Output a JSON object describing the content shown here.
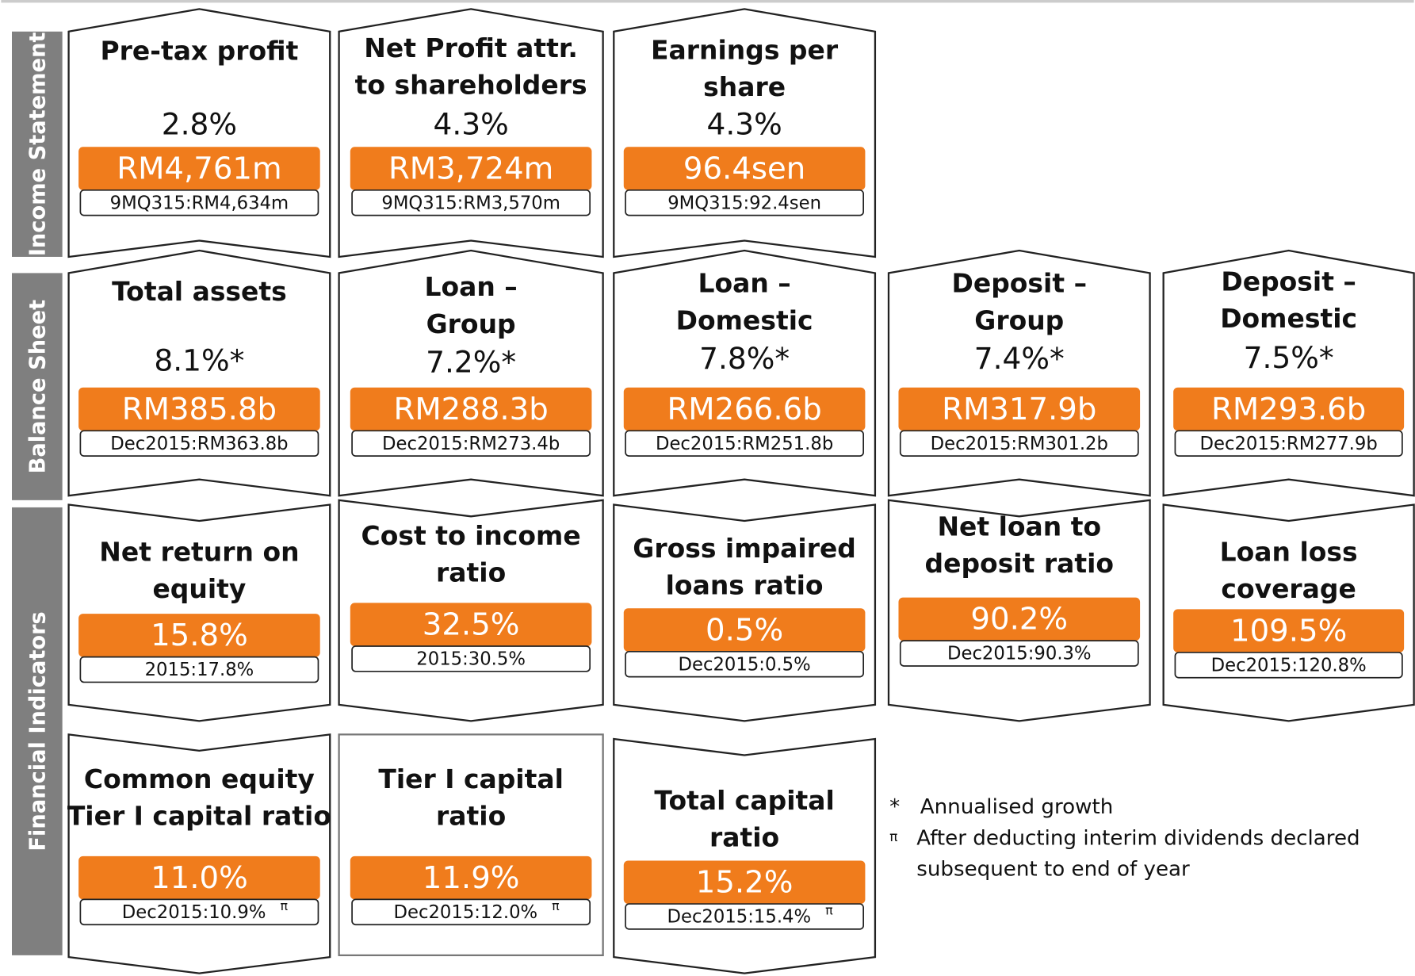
{
  "sections": [
    {
      "label": "Income Statement",
      "cards": [
        {
          "title": [
            "Pre-tax profit"
          ],
          "growth": "2.8%",
          "value": "RM4,761m",
          "compare": "9MQ315:RM4,634m"
        },
        {
          "title": [
            "Net Profit attr.",
            "to shareholders"
          ],
          "growth": "4.3%",
          "value": "RM3,724m",
          "compare": "9MQ315:RM3,570m"
        },
        {
          "title": [
            "Earnings per",
            "share"
          ],
          "growth": "4.3%",
          "value": "96.4sen",
          "compare": "9MQ315:92.4sen"
        }
      ]
    },
    {
      "label": "Balance Sheet",
      "cards": [
        {
          "title": [
            "Total assets"
          ],
          "growth": "8.1%*",
          "value": "RM385.8b",
          "compare": "Dec2015:RM363.8b"
        },
        {
          "title": [
            "Loan –",
            "Group"
          ],
          "growth": "7.2%*",
          "value": "RM288.3b",
          "compare": "Dec2015:RM273.4b"
        },
        {
          "title": [
            "Loan –",
            "Domestic"
          ],
          "growth": "7.8%*",
          "value": "RM266.6b",
          "compare": "Dec2015:RM251.8b"
        },
        {
          "title": [
            "Deposit –",
            "Group"
          ],
          "growth": "7.4%*",
          "value": "RM317.9b",
          "compare": "Dec2015:RM301.2b"
        },
        {
          "title": [
            "Deposit –",
            "Domestic"
          ],
          "growth": "7.5%*",
          "value": "RM293.6b",
          "compare": "Dec2015:RM277.9b"
        }
      ]
    },
    {
      "label": "Financial Indicators",
      "cards": [
        {
          "title": [
            "Net return on",
            "equity"
          ],
          "value": "15.8%",
          "compare": "2015:17.8%"
        },
        {
          "title": [
            "Cost to income",
            "ratio"
          ],
          "value": "32.5%",
          "compare": "2015:30.5%"
        },
        {
          "title": [
            "Gross impaired",
            "loans ratio"
          ],
          "value": "0.5%",
          "compare": "Dec2015:0.5%"
        },
        {
          "title": [
            "Net loan to",
            "deposit ratio"
          ],
          "value": "90.2%",
          "compare": "Dec2015:90.3%"
        },
        {
          "title": [
            "Loan loss",
            "coverage"
          ],
          "value": "109.5%",
          "compare": "Dec2015:120.8%"
        },
        {
          "title": [
            "Common equity",
            "Tier I capital ratio"
          ],
          "value": "11.0%",
          "compare": "Dec2015:10.9%",
          "sup": "π"
        },
        {
          "title": [
            "Tier I capital",
            "ratio"
          ],
          "value": "11.9%",
          "compare": "Dec2015:12.0%",
          "sup": "π"
        },
        {
          "title": [
            "Total capital",
            "ratio"
          ],
          "value": "15.2%",
          "compare": "Dec2015:15.4%",
          "sup": "π"
        }
      ]
    }
  ],
  "notes": [
    {
      "symbol": "*",
      "text": [
        "Annualised growth"
      ]
    },
    {
      "symbol": "π",
      "text": [
        "After deducting interim dividends declared",
        "subsequent to end of year"
      ]
    }
  ]
}
